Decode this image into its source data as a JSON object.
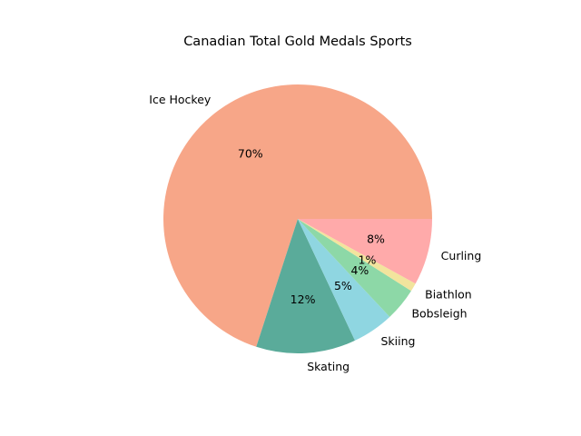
{
  "chart_data": {
    "type": "pie",
    "title": "Canadian Total Gold Medals Sports",
    "start_angle_deg": 0,
    "direction": "counterclockwise",
    "slices": [
      {
        "label": "Ice Hockey",
        "value": 70,
        "pct_text": "70%",
        "color": "#f7a688"
      },
      {
        "label": "Skating",
        "value": 12,
        "pct_text": "12%",
        "color": "#5aab9a"
      },
      {
        "label": "Skiing",
        "value": 5,
        "pct_text": "5%",
        "color": "#8fd6e1"
      },
      {
        "label": "Bobsleigh",
        "value": 4,
        "pct_text": "4%",
        "color": "#8dd8a7"
      },
      {
        "label": "Biathlon",
        "value": 1,
        "pct_text": "1%",
        "color": "#f2e49d"
      },
      {
        "label": "Curling",
        "value": 8,
        "pct_text": "8%",
        "color": "#ffaaaa"
      }
    ]
  }
}
